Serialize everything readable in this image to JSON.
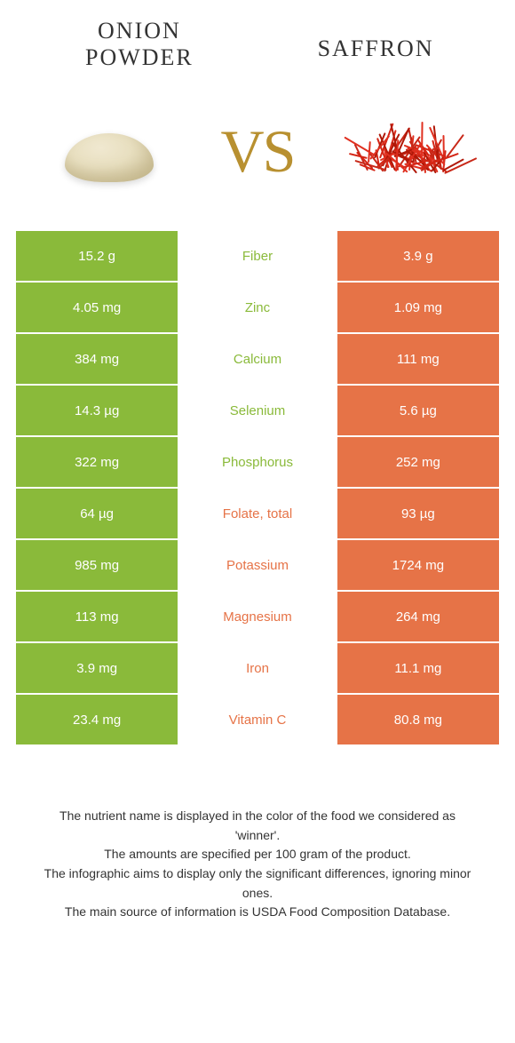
{
  "titles": {
    "left": "ONION POWDER",
    "right": "SAFFRON",
    "vs": "VS"
  },
  "colors": {
    "green": "#8aba3a",
    "orange": "#e67347",
    "vs_color": "#b89030",
    "background": "#ffffff"
  },
  "rows": [
    {
      "left": "15.2 g",
      "mid": "Fiber",
      "right": "3.9 g",
      "winner": "green"
    },
    {
      "left": "4.05 mg",
      "mid": "Zinc",
      "right": "1.09 mg",
      "winner": "green"
    },
    {
      "left": "384 mg",
      "mid": "Calcium",
      "right": "111 mg",
      "winner": "green"
    },
    {
      "left": "14.3 µg",
      "mid": "Selenium",
      "right": "5.6 µg",
      "winner": "green"
    },
    {
      "left": "322 mg",
      "mid": "Phosphorus",
      "right": "252 mg",
      "winner": "green"
    },
    {
      "left": "64 µg",
      "mid": "Folate, total",
      "right": "93 µg",
      "winner": "orange"
    },
    {
      "left": "985 mg",
      "mid": "Potassium",
      "right": "1724 mg",
      "winner": "orange"
    },
    {
      "left": "113 mg",
      "mid": "Magnesium",
      "right": "264 mg",
      "winner": "orange"
    },
    {
      "left": "3.9 mg",
      "mid": "Iron",
      "right": "11.1 mg",
      "winner": "orange"
    },
    {
      "left": "23.4 mg",
      "mid": "Vitamin C",
      "right": "80.8 mg",
      "winner": "orange"
    }
  ],
  "footer": {
    "line1": "The nutrient name is displayed in the color of the food we considered as 'winner'.",
    "line2": "The amounts are specified per 100 gram of the product.",
    "line3": "The infographic aims to display only the significant differences, ignoring minor ones.",
    "line4": "The main source of information is USDA Food Composition Database."
  }
}
